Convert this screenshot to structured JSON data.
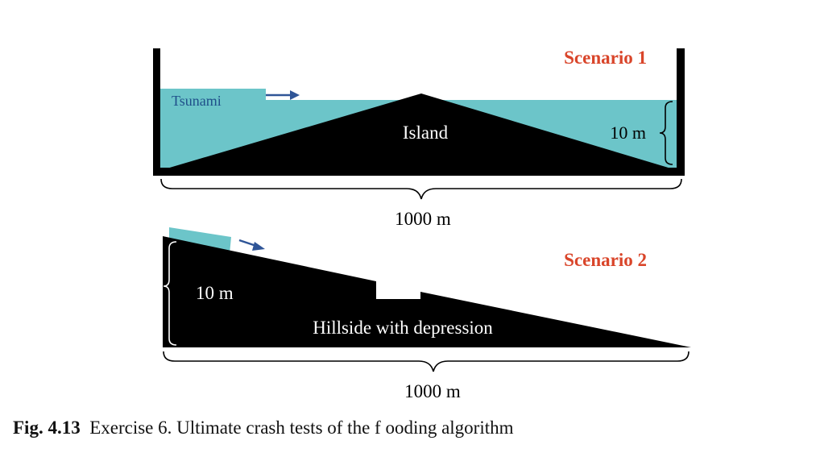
{
  "scenario1": {
    "title": "Scenario 1",
    "wave_label": "Tsunami",
    "island_label": "Island",
    "depth_label": "10 m",
    "width_label": "1000 m"
  },
  "scenario2": {
    "title": "Scenario 2",
    "height_label": "10 m",
    "slope_label": "Hillside with depression",
    "width_label": "1000 m"
  },
  "caption": {
    "figure_number": "Fig. 4.13",
    "text": "Exercise 6. Ultimate crash tests of the f ooding algorithm"
  },
  "colors": {
    "water": "#6cc5c9",
    "terrain": "#000000",
    "scenario_title": "#d9452a",
    "tsunami_text": "#1f4f8a",
    "arrow": "#2f5597",
    "label_white": "#ffffff"
  }
}
